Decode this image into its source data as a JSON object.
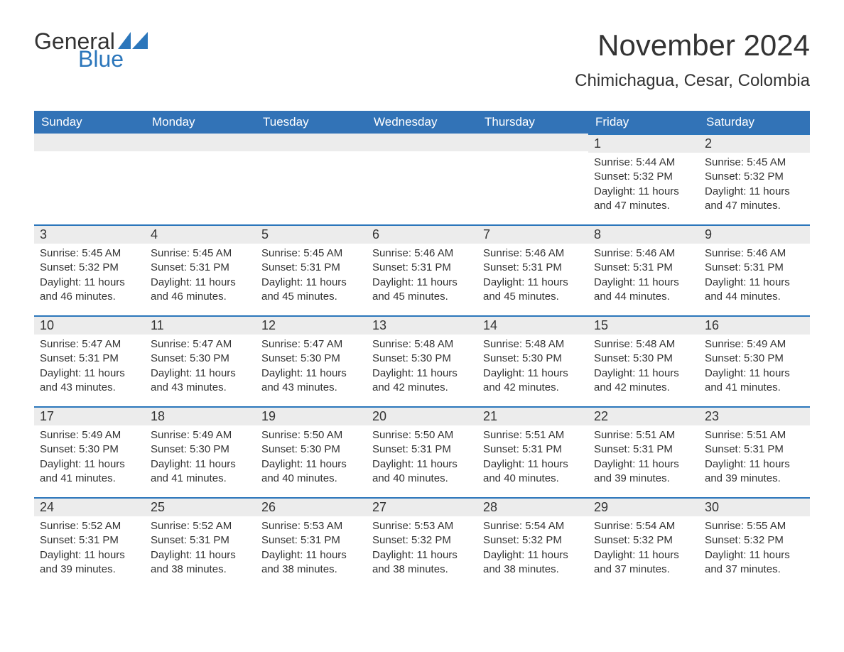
{
  "logo": {
    "general": "General",
    "blue": "Blue"
  },
  "title": "November 2024",
  "location": "Chimichagua, Cesar, Colombia",
  "colors": {
    "header_bg": "#3273b7",
    "header_text": "#ffffff",
    "daybar_bg": "#ececec",
    "daybar_border": "#2b76bb",
    "body_text": "#333333",
    "logo_blue": "#2b76bb"
  },
  "day_headers": [
    "Sunday",
    "Monday",
    "Tuesday",
    "Wednesday",
    "Thursday",
    "Friday",
    "Saturday"
  ],
  "weeks": [
    [
      null,
      null,
      null,
      null,
      null,
      {
        "n": "1",
        "sunrise": "Sunrise: 5:44 AM",
        "sunset": "Sunset: 5:32 PM",
        "daylight": "Daylight: 11 hours and 47 minutes."
      },
      {
        "n": "2",
        "sunrise": "Sunrise: 5:45 AM",
        "sunset": "Sunset: 5:32 PM",
        "daylight": "Daylight: 11 hours and 47 minutes."
      }
    ],
    [
      {
        "n": "3",
        "sunrise": "Sunrise: 5:45 AM",
        "sunset": "Sunset: 5:32 PM",
        "daylight": "Daylight: 11 hours and 46 minutes."
      },
      {
        "n": "4",
        "sunrise": "Sunrise: 5:45 AM",
        "sunset": "Sunset: 5:31 PM",
        "daylight": "Daylight: 11 hours and 46 minutes."
      },
      {
        "n": "5",
        "sunrise": "Sunrise: 5:45 AM",
        "sunset": "Sunset: 5:31 PM",
        "daylight": "Daylight: 11 hours and 45 minutes."
      },
      {
        "n": "6",
        "sunrise": "Sunrise: 5:46 AM",
        "sunset": "Sunset: 5:31 PM",
        "daylight": "Daylight: 11 hours and 45 minutes."
      },
      {
        "n": "7",
        "sunrise": "Sunrise: 5:46 AM",
        "sunset": "Sunset: 5:31 PM",
        "daylight": "Daylight: 11 hours and 45 minutes."
      },
      {
        "n": "8",
        "sunrise": "Sunrise: 5:46 AM",
        "sunset": "Sunset: 5:31 PM",
        "daylight": "Daylight: 11 hours and 44 minutes."
      },
      {
        "n": "9",
        "sunrise": "Sunrise: 5:46 AM",
        "sunset": "Sunset: 5:31 PM",
        "daylight": "Daylight: 11 hours and 44 minutes."
      }
    ],
    [
      {
        "n": "10",
        "sunrise": "Sunrise: 5:47 AM",
        "sunset": "Sunset: 5:31 PM",
        "daylight": "Daylight: 11 hours and 43 minutes."
      },
      {
        "n": "11",
        "sunrise": "Sunrise: 5:47 AM",
        "sunset": "Sunset: 5:30 PM",
        "daylight": "Daylight: 11 hours and 43 minutes."
      },
      {
        "n": "12",
        "sunrise": "Sunrise: 5:47 AM",
        "sunset": "Sunset: 5:30 PM",
        "daylight": "Daylight: 11 hours and 43 minutes."
      },
      {
        "n": "13",
        "sunrise": "Sunrise: 5:48 AM",
        "sunset": "Sunset: 5:30 PM",
        "daylight": "Daylight: 11 hours and 42 minutes."
      },
      {
        "n": "14",
        "sunrise": "Sunrise: 5:48 AM",
        "sunset": "Sunset: 5:30 PM",
        "daylight": "Daylight: 11 hours and 42 minutes."
      },
      {
        "n": "15",
        "sunrise": "Sunrise: 5:48 AM",
        "sunset": "Sunset: 5:30 PM",
        "daylight": "Daylight: 11 hours and 42 minutes."
      },
      {
        "n": "16",
        "sunrise": "Sunrise: 5:49 AM",
        "sunset": "Sunset: 5:30 PM",
        "daylight": "Daylight: 11 hours and 41 minutes."
      }
    ],
    [
      {
        "n": "17",
        "sunrise": "Sunrise: 5:49 AM",
        "sunset": "Sunset: 5:30 PM",
        "daylight": "Daylight: 11 hours and 41 minutes."
      },
      {
        "n": "18",
        "sunrise": "Sunrise: 5:49 AM",
        "sunset": "Sunset: 5:30 PM",
        "daylight": "Daylight: 11 hours and 41 minutes."
      },
      {
        "n": "19",
        "sunrise": "Sunrise: 5:50 AM",
        "sunset": "Sunset: 5:30 PM",
        "daylight": "Daylight: 11 hours and 40 minutes."
      },
      {
        "n": "20",
        "sunrise": "Sunrise: 5:50 AM",
        "sunset": "Sunset: 5:31 PM",
        "daylight": "Daylight: 11 hours and 40 minutes."
      },
      {
        "n": "21",
        "sunrise": "Sunrise: 5:51 AM",
        "sunset": "Sunset: 5:31 PM",
        "daylight": "Daylight: 11 hours and 40 minutes."
      },
      {
        "n": "22",
        "sunrise": "Sunrise: 5:51 AM",
        "sunset": "Sunset: 5:31 PM",
        "daylight": "Daylight: 11 hours and 39 minutes."
      },
      {
        "n": "23",
        "sunrise": "Sunrise: 5:51 AM",
        "sunset": "Sunset: 5:31 PM",
        "daylight": "Daylight: 11 hours and 39 minutes."
      }
    ],
    [
      {
        "n": "24",
        "sunrise": "Sunrise: 5:52 AM",
        "sunset": "Sunset: 5:31 PM",
        "daylight": "Daylight: 11 hours and 39 minutes."
      },
      {
        "n": "25",
        "sunrise": "Sunrise: 5:52 AM",
        "sunset": "Sunset: 5:31 PM",
        "daylight": "Daylight: 11 hours and 38 minutes."
      },
      {
        "n": "26",
        "sunrise": "Sunrise: 5:53 AM",
        "sunset": "Sunset: 5:31 PM",
        "daylight": "Daylight: 11 hours and 38 minutes."
      },
      {
        "n": "27",
        "sunrise": "Sunrise: 5:53 AM",
        "sunset": "Sunset: 5:32 PM",
        "daylight": "Daylight: 11 hours and 38 minutes."
      },
      {
        "n": "28",
        "sunrise": "Sunrise: 5:54 AM",
        "sunset": "Sunset: 5:32 PM",
        "daylight": "Daylight: 11 hours and 38 minutes."
      },
      {
        "n": "29",
        "sunrise": "Sunrise: 5:54 AM",
        "sunset": "Sunset: 5:32 PM",
        "daylight": "Daylight: 11 hours and 37 minutes."
      },
      {
        "n": "30",
        "sunrise": "Sunrise: 5:55 AM",
        "sunset": "Sunset: 5:32 PM",
        "daylight": "Daylight: 11 hours and 37 minutes."
      }
    ]
  ]
}
